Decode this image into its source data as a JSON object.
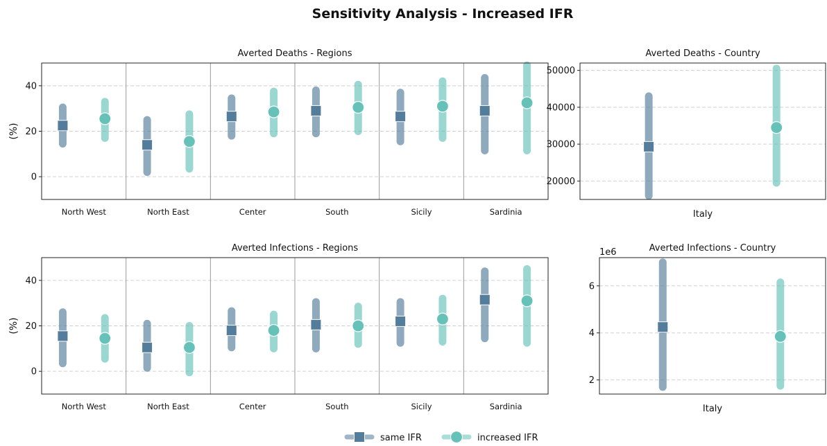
{
  "title": "Sensitivity Analysis - Increased IFR",
  "colors": {
    "same": "#547c9b",
    "increased": "#66c2b9",
    "grid": "#d0d0d0",
    "sep": "#999999"
  },
  "legend": [
    {
      "label": "same IFR",
      "marker": "square",
      "color": "#547c9b"
    },
    {
      "label": "increased IFR",
      "marker": "circle",
      "color": "#66c2b9"
    }
  ],
  "chart_data": [
    {
      "id": "deaths-regions",
      "type": "scatter",
      "title": "Averted Deaths - Regions",
      "ylabel": "(%)",
      "ylim": [
        -10,
        50
      ],
      "yticks": [
        "0",
        "20",
        "40"
      ],
      "grid": "y, dashed",
      "categories": [
        "North West",
        "North East",
        "Center",
        "South",
        "Sicily",
        "Sardinia"
      ],
      "series": [
        {
          "name": "same IFR",
          "values": [
            22.5,
            14,
            26.5,
            29,
            26.5,
            29
          ],
          "low": [
            14.5,
            2,
            18,
            19,
            15.5,
            11.5
          ],
          "high": [
            30.5,
            25,
            34.5,
            38,
            37,
            43.5
          ]
        },
        {
          "name": "increased IFR",
          "values": [
            25.5,
            15.5,
            28.5,
            30.5,
            31,
            32.5
          ],
          "low": [
            17,
            3.5,
            19,
            20,
            17,
            11.5
          ],
          "high": [
            33,
            27.5,
            37.5,
            40.5,
            42,
            49
          ]
        }
      ]
    },
    {
      "id": "deaths-country",
      "type": "scatter",
      "title": "Averted Deaths - Country",
      "xlabel": "Italy",
      "ylim": [
        15000,
        52000
      ],
      "yticks": [
        "20000",
        "30000",
        "40000",
        "50000"
      ],
      "grid": "y, dashed",
      "series": [
        {
          "name": "same IFR",
          "value": 29300,
          "low": 16000,
          "high": 43000
        },
        {
          "name": "increased IFR",
          "value": 34500,
          "low": 19500,
          "high": 50500
        }
      ]
    },
    {
      "id": "infections-regions",
      "type": "scatter",
      "title": "Averted Infections - Regions",
      "ylabel": "(%)",
      "ylim": [
        -10,
        50
      ],
      "yticks": [
        "0",
        "20",
        "40"
      ],
      "grid": "y, dashed",
      "categories": [
        "North West",
        "North East",
        "Center",
        "South",
        "Sicily",
        "Sardinia"
      ],
      "series": [
        {
          "name": "same IFR",
          "values": [
            15.5,
            10.5,
            18,
            20.5,
            22,
            31.5
          ],
          "low": [
            3.5,
            1.5,
            10.5,
            10,
            12.5,
            14.5
          ],
          "high": [
            26,
            21,
            26.5,
            30.5,
            30.5,
            44
          ]
        },
        {
          "name": "increased IFR",
          "values": [
            14.5,
            10.5,
            18,
            20,
            23,
            31
          ],
          "low": [
            5.5,
            -0.5,
            10,
            12,
            13,
            12.5
          ],
          "high": [
            23.5,
            20,
            25,
            28.5,
            32,
            45
          ]
        }
      ]
    },
    {
      "id": "infections-country",
      "type": "scatter",
      "title": "Averted Infections - Country",
      "xlabel": "Italy",
      "offset_label": "1e6",
      "ylim": [
        1.4,
        7.2
      ],
      "yticks": [
        "2",
        "4",
        "6"
      ],
      "grid": "y, dashed",
      "series": [
        {
          "name": "same IFR",
          "value": 4.25,
          "low": 1.7,
          "high": 7.0
        },
        {
          "name": "increased IFR",
          "value": 3.85,
          "low": 1.75,
          "high": 6.15
        }
      ]
    }
  ]
}
